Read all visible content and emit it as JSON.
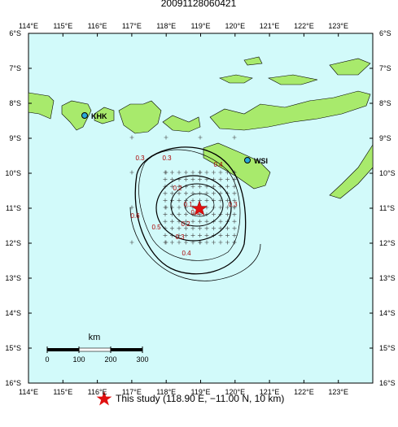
{
  "header": {
    "title": "20091128060421"
  },
  "lon_labels": [
    "114°E",
    "115°E",
    "116°E",
    "117°E",
    "118°E",
    "119°E",
    "120°E",
    "121°E",
    "122°E",
    "123°E"
  ],
  "lat_labels": [
    "6°S",
    "7°S",
    "8°S",
    "9°S",
    "10°S",
    "11°S",
    "12°S",
    "13°S",
    "14°S",
    "15°S",
    "16°S"
  ],
  "stations": [
    "KHK",
    "WSI"
  ],
  "contour_labels": [
    "0.3",
    "0.3",
    "0.4",
    "0.2",
    "0.1",
    "0.3",
    "0.6",
    "0.1",
    "0.5",
    "0.2",
    "0.3",
    "0.4"
  ],
  "scale": {
    "unit": "km",
    "ticks": [
      "0",
      "100",
      "200",
      "300"
    ]
  },
  "legend": "This study (118.90 E, −11.00 N, 10 km)"
}
